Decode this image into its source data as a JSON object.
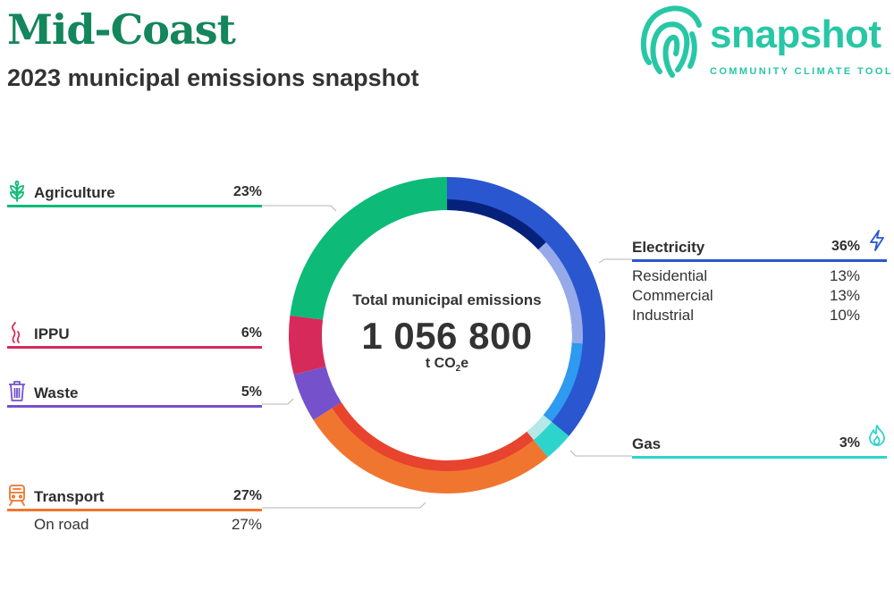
{
  "header": {
    "title": "Mid-Coast",
    "subtitle": "2023 municipal emissions snapshot"
  },
  "logo": {
    "wordmark": "snapshot",
    "tagline": "COMMUNITY CLIMATE TOOL",
    "color": "#27c7a5"
  },
  "center": {
    "label": "Total municipal emissions",
    "value": "1 056 800",
    "unit_prefix": "t CO",
    "unit_sub": "2",
    "unit_suffix": "e"
  },
  "categories": [
    {
      "key": "agriculture",
      "label": "Agriculture",
      "pct": "23%",
      "icon": "wheat-icon",
      "color": "#0dba78"
    },
    {
      "key": "ippu",
      "label": "IPPU",
      "pct": "6%",
      "icon": "smoke-icon",
      "color": "#d62a5a"
    },
    {
      "key": "waste",
      "label": "Waste",
      "pct": "5%",
      "icon": "trash-can-icon",
      "color": "#7552cc"
    },
    {
      "key": "transport",
      "label": "Transport",
      "pct": "27%",
      "icon": "train-icon",
      "color": "#f0762f",
      "subcategories": [
        {
          "label": "On road",
          "pct": "27%"
        }
      ]
    },
    {
      "key": "electricity",
      "label": "Electricity",
      "pct": "36%",
      "icon": "lightning-icon",
      "color": "#2a56d0",
      "subcategories": [
        {
          "label": "Residential",
          "pct": "13%"
        },
        {
          "label": "Commercial",
          "pct": "13%"
        },
        {
          "label": "Industrial",
          "pct": "10%"
        }
      ]
    },
    {
      "key": "gas",
      "label": "Gas",
      "pct": "3%",
      "icon": "flame-icon",
      "color": "#2dd4cc"
    }
  ],
  "chart_data": {
    "type": "pie",
    "variant": "donut",
    "total": "1 056 800",
    "unit": "t CO2e",
    "slices": [
      {
        "name": "Electricity",
        "value": 36,
        "color": "#2a56d0",
        "inner": [
          {
            "name": "Residential",
            "value": 13,
            "color": "#06217a"
          },
          {
            "name": "Commercial",
            "value": 13,
            "color": "#96aaea"
          },
          {
            "name": "Industrial",
            "value": 10,
            "color": "#2e9af0"
          }
        ]
      },
      {
        "name": "Gas",
        "value": 3,
        "color": "#2dd4cc",
        "inner": [
          {
            "name": "Gas",
            "value": 3,
            "color": "#b6e8e8"
          }
        ]
      },
      {
        "name": "Transport",
        "value": 27,
        "color": "#f0762f",
        "inner": [
          {
            "name": "On road",
            "value": 27,
            "color": "#e8432f"
          }
        ]
      },
      {
        "name": "Waste",
        "value": 5,
        "color": "#7552cc"
      },
      {
        "name": "IPPU",
        "value": 6,
        "color": "#d62a5a"
      },
      {
        "name": "Agriculture",
        "value": 23,
        "color": "#0dba78"
      }
    ]
  }
}
